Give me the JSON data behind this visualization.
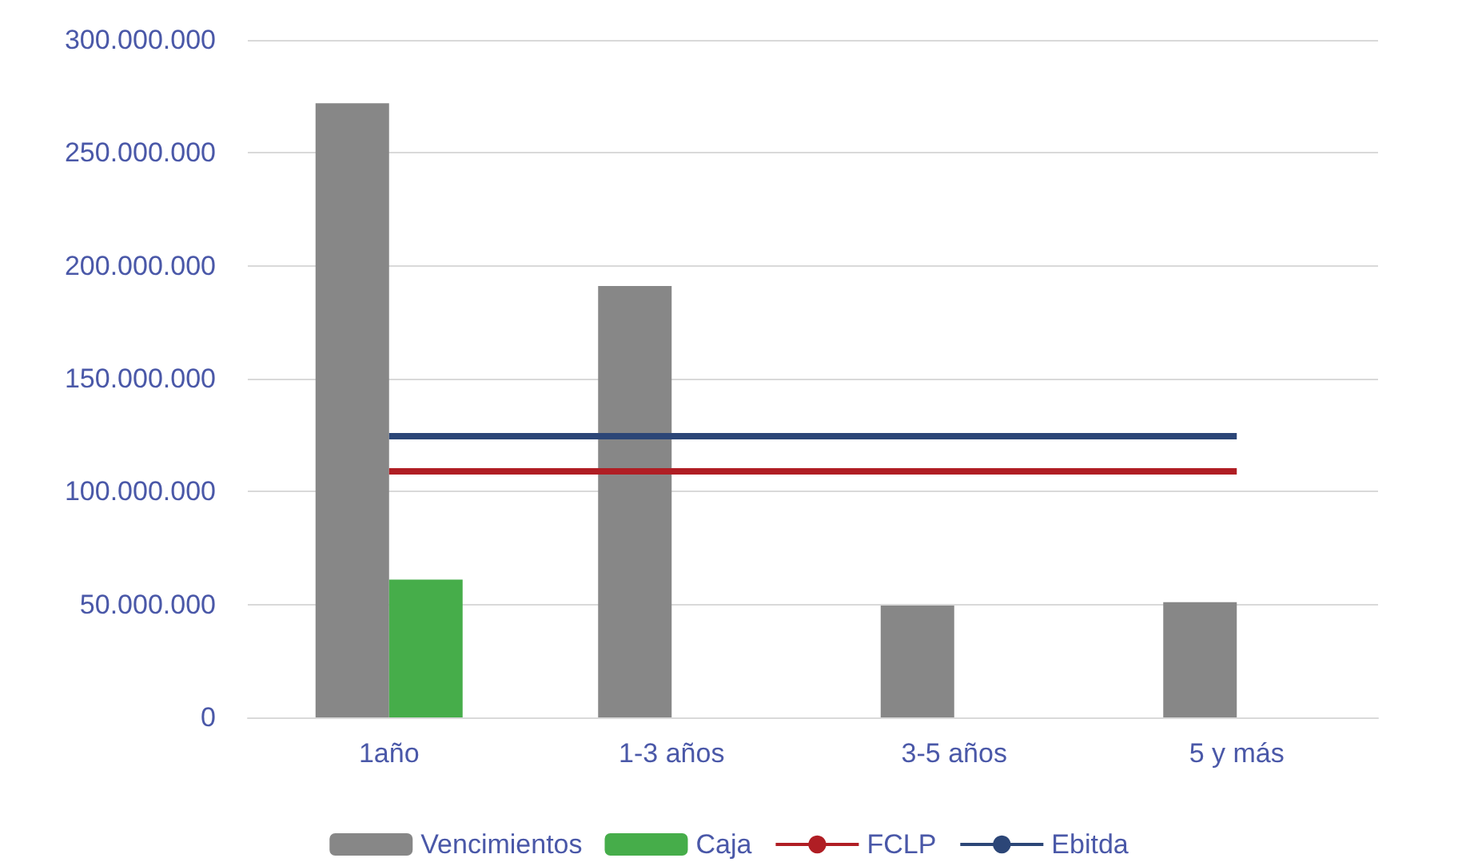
{
  "chart_data": {
    "type": "bar",
    "categories": [
      "1año",
      "1-3 años",
      "3-5 años",
      "5 y más"
    ],
    "series": [
      {
        "name": "Vencimientos",
        "color": "#878787",
        "values": [
          272000000,
          191000000,
          49500000,
          51000000
        ]
      },
      {
        "name": "Caja",
        "color": "#46ad4a",
        "values": [
          61000000,
          null,
          null,
          null
        ]
      },
      {
        "name": "FCLP",
        "type": "line",
        "color": "#b01e24",
        "values": [
          109000000,
          109000000,
          109000000,
          109000000
        ]
      },
      {
        "name": "Ebitda",
        "type": "line",
        "color": "#2c4677",
        "values": [
          124500000,
          124500000,
          124500000,
          124500000
        ]
      }
    ],
    "ylim": [
      0,
      300000000
    ],
    "yticks": [
      0,
      {
        "value": 50000000,
        "label": "50.000.000"
      },
      {
        "value": 100000000,
        "label": "100.000.000"
      },
      {
        "value": 150000000,
        "label": "150.000.000"
      },
      {
        "value": 200000000,
        "label": "200.000.000"
      },
      {
        "value": 250000000,
        "label": "250.000.000"
      },
      {
        "value": 300000000,
        "label": "300.000.000"
      }
    ],
    "grid": "y",
    "legend": "bottom",
    "marker": "none"
  }
}
